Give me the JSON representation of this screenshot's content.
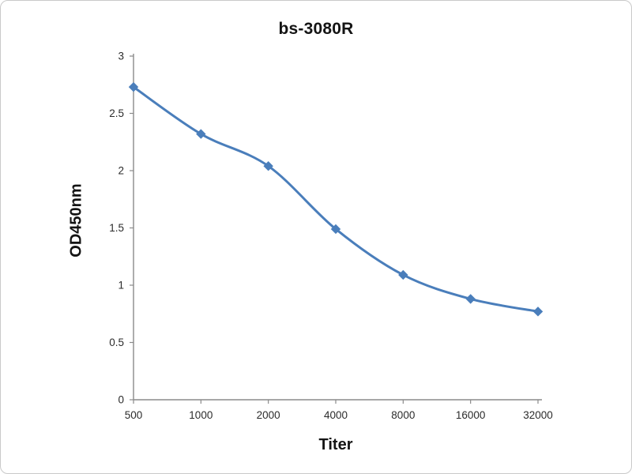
{
  "chart_data": {
    "type": "line",
    "title": "bs-3080R",
    "xlabel": "Titer",
    "ylabel": "OD450nm",
    "categories": [
      "500",
      "1000",
      "2000",
      "4000",
      "8000",
      "16000",
      "32000"
    ],
    "series": [
      {
        "name": "bs-3080R",
        "values": [
          2.73,
          2.32,
          2.04,
          1.49,
          1.09,
          0.88,
          0.77
        ]
      }
    ],
    "ylim": [
      0,
      3
    ],
    "yticks": [
      0,
      0.5,
      1,
      1.5,
      2,
      2.5,
      3
    ],
    "grid": false,
    "legend_position": "none",
    "line_color": "#4a7ebb",
    "marker": "diamond",
    "axis_color": "#8a8a8a",
    "tick_text_color": "#2b2b2b"
  }
}
